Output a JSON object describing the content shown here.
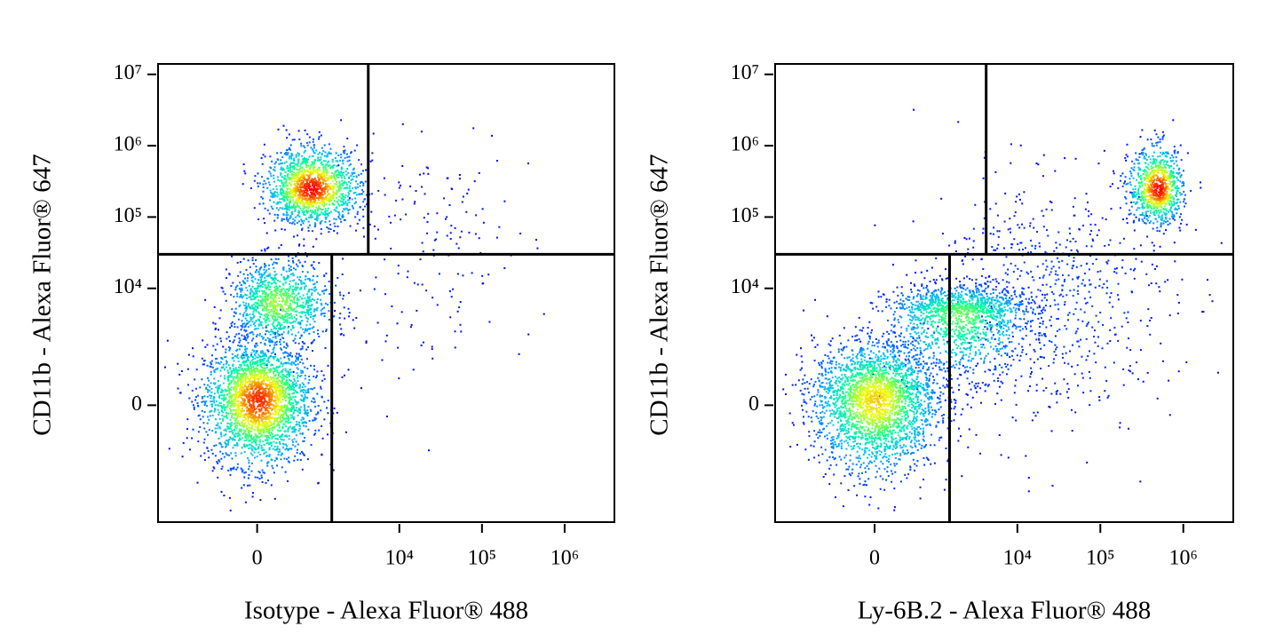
{
  "chart_data": [
    {
      "type": "density",
      "xlabel": "Isotype - Alexa Fluor® 488",
      "ylabel": "CD11b - Alexa Fluor® 647",
      "xlim": [
        -3000,
        4000000
      ],
      "ylim": [
        -10000,
        14000000
      ],
      "xticks": [
        0,
        {
          "value": 10000,
          "label": "10⁴"
        },
        {
          "value": 100000,
          "label": "10⁵"
        },
        {
          "value": 1000000,
          "label": "10⁶"
        }
      ],
      "yticks": [
        0,
        {
          "value": 10000,
          "label": "10⁴"
        },
        {
          "value": 100000,
          "label": "10⁵"
        },
        {
          "value": 1000000,
          "label": "10⁶"
        },
        {
          "value": 10000000,
          "label": "10⁷"
        }
      ],
      "gates": {
        "x_upper": 4200,
        "x_lower": 1500,
        "y": 30000
      },
      "colormap": [
        "#0000ff",
        "#00b4ff",
        "#00ff9c",
        "#f0ff00",
        "#ff0000"
      ],
      "populations": [
        {
          "x": [
            -800,
            0,
            800
          ],
          "y": [
            -1500,
            100,
            1700
          ],
          "events": 2600
        },
        {
          "x": [
            -300,
            200,
            1500
          ],
          "y": [
            1500,
            6300,
            25000
          ],
          "events": 1100
        },
        {
          "x": [
            95,
            800,
            3300
          ],
          "y": [
            84000,
            250000,
            970000
          ],
          "events": 1500
        },
        {
          "x": [
            1500,
            20000,
            400000
          ],
          "y": [
            300,
            50000,
            900000
          ],
          "events": 160
        }
      ]
    },
    {
      "type": "density",
      "xlabel": "Ly-6B.2 - Alexa Fluor® 488",
      "ylabel": "CD11b - Alexa Fluor® 647",
      "xlim": [
        -3000,
        4000000
      ],
      "ylim": [
        -10000,
        14000000
      ],
      "xticks": [
        0,
        {
          "value": 10000,
          "label": "10⁴"
        },
        {
          "value": 100000,
          "label": "10⁵"
        },
        {
          "value": 1000000,
          "label": "10⁶"
        }
      ],
      "yticks": [
        0,
        {
          "value": 10000,
          "label": "10⁴"
        },
        {
          "value": 100000,
          "label": "10⁵"
        },
        {
          "value": 1000000,
          "label": "10⁶"
        },
        {
          "value": 10000000,
          "label": "10⁷"
        }
      ],
      "gates": {
        "x_upper": 4200,
        "x_lower": 1500,
        "y": 30000
      },
      "colormap": [
        "#0000ff",
        "#00b4ff",
        "#00ff9c",
        "#f0ff00",
        "#ff0000"
      ],
      "populations": [
        {
          "x": [
            -1000,
            0,
            1000
          ],
          "y": [
            -1800,
            100,
            1700
          ],
          "events": 2600
        },
        {
          "x": [
            135,
            2000,
            14000
          ],
          "y": [
            540,
            4700,
            11000
          ],
          "events": 1500
        },
        {
          "x": [
            215000,
            500000,
            950000
          ],
          "y": [
            84000,
            250000,
            970000
          ],
          "events": 900
        },
        {
          "x": [
            930,
            23000,
            740000
          ],
          "y": [
            -360,
            8400,
            354000
          ],
          "events": 700
        }
      ]
    }
  ]
}
